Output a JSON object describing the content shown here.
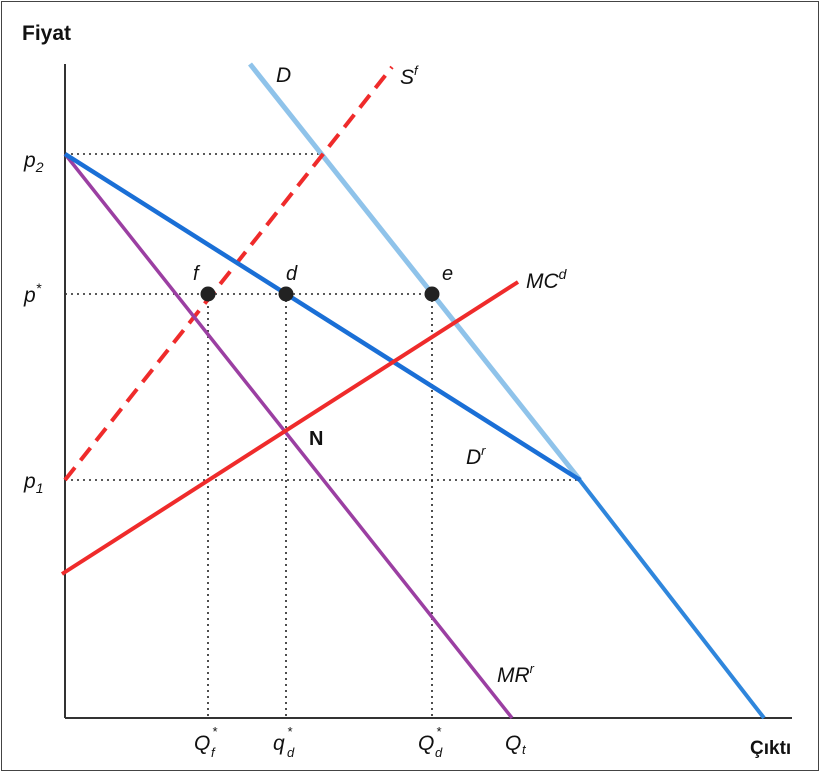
{
  "axes": {
    "y_title": "Fiyat",
    "x_title": "Çıktı"
  },
  "price_levels": {
    "p2": {
      "base": "p",
      "sub": "2"
    },
    "p_star": {
      "base": "p",
      "sup": "*"
    },
    "p1": {
      "base": "p",
      "sub": "1"
    }
  },
  "quantity_labels": {
    "Qf": {
      "base": "Q",
      "sup": "*",
      "sub": "f"
    },
    "qd": {
      "base": "q",
      "sup": "*",
      "sub": "d"
    },
    "Qd": {
      "base": "Q",
      "sup": "*",
      "sub": "d"
    },
    "Qt": {
      "base": "Q",
      "sub": "t"
    }
  },
  "curves": {
    "D": {
      "base": "D",
      "color": "#8fc3ea"
    },
    "Sf": {
      "base": "S",
      "sup": "f",
      "color": "#ef2b2b"
    },
    "MCd": {
      "base": "MC",
      "sup": "d",
      "color": "#ef2b2b"
    },
    "Dr": {
      "base": "D",
      "sup": "r",
      "color": "#1a6fd6"
    },
    "MRr": {
      "base": "MR",
      "sup": "r",
      "color": "#9b3fa2"
    }
  },
  "points": {
    "f": "f",
    "d": "d",
    "e": "e",
    "N": "N"
  }
}
